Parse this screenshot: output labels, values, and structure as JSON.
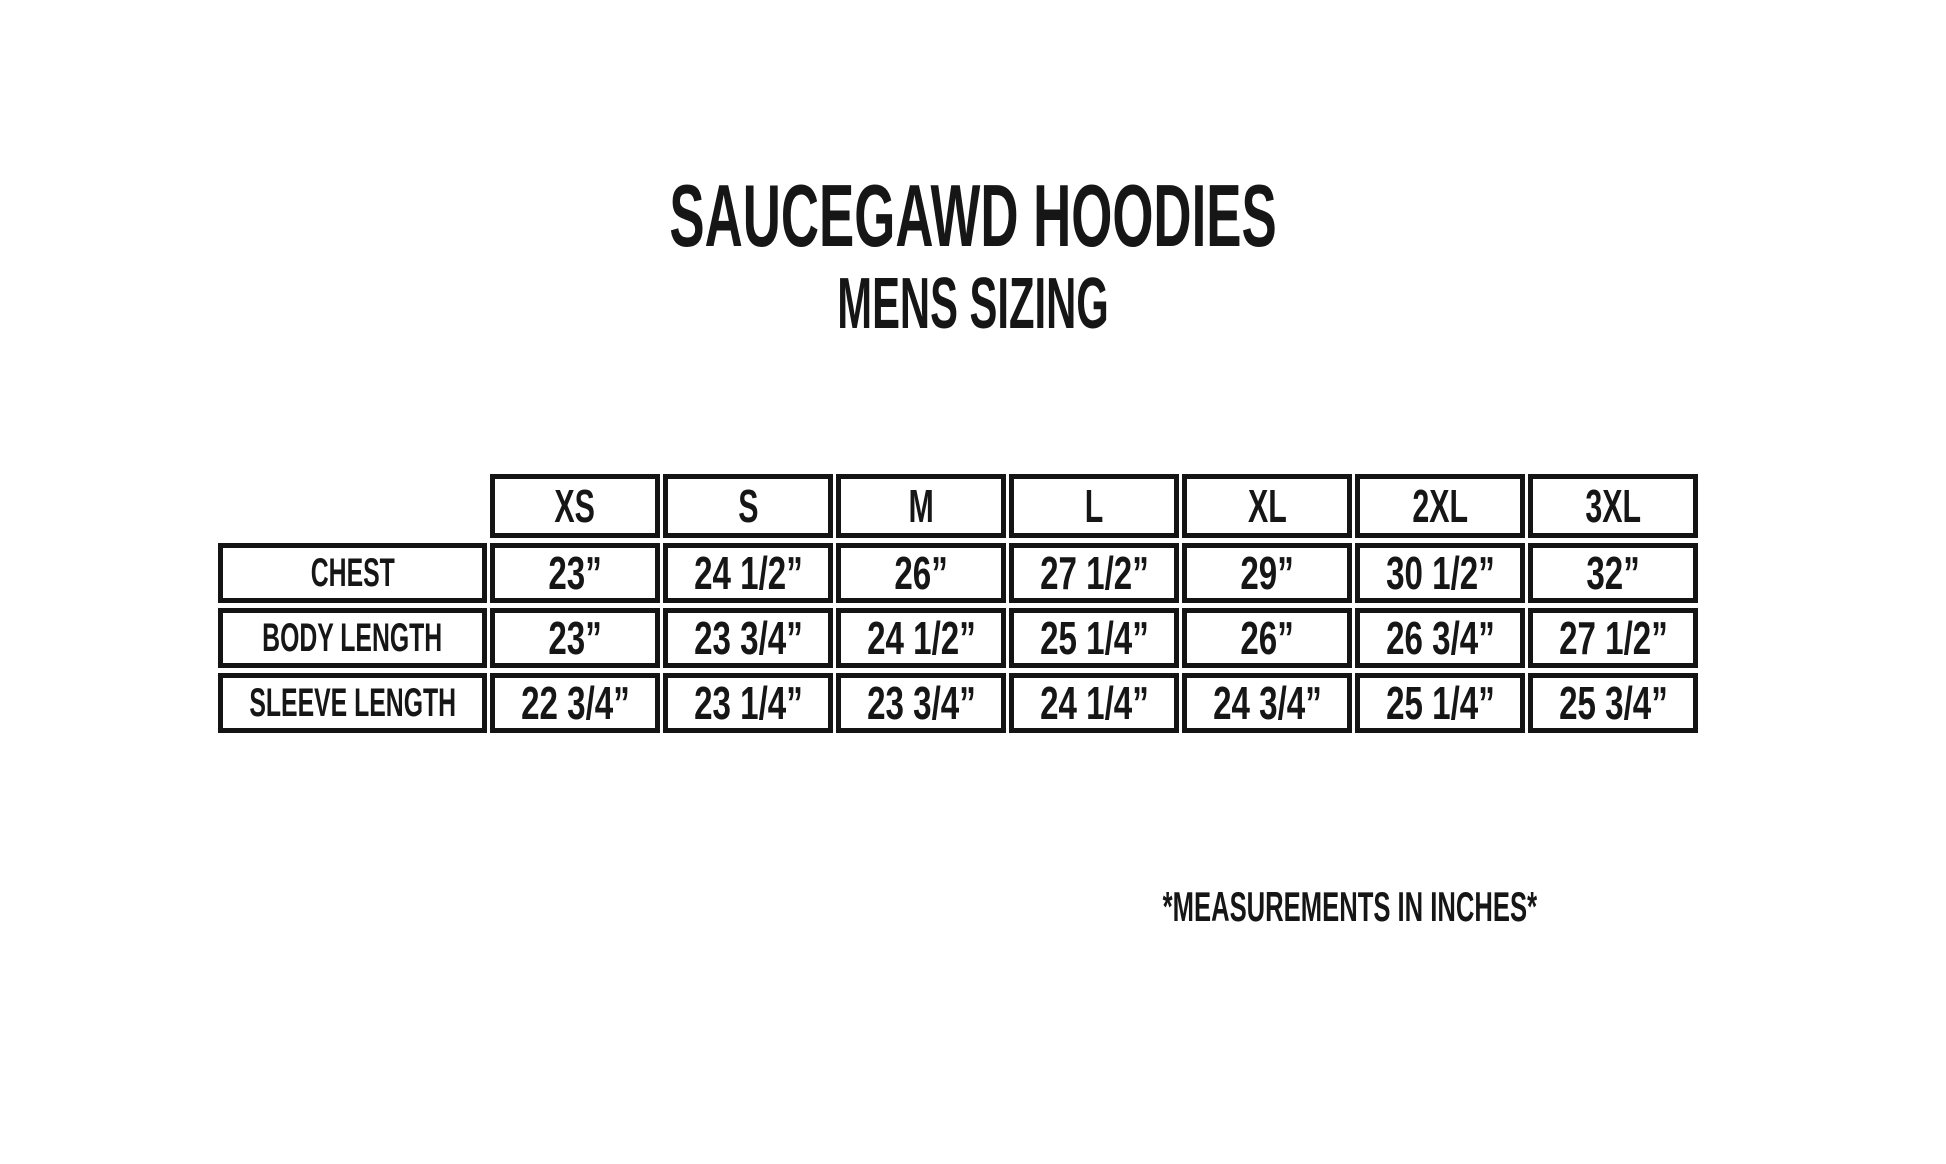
{
  "header": {
    "title": "SAUCEGAWD HOODIES",
    "subtitle": "MENS SIZING"
  },
  "chart_data": {
    "type": "table",
    "title": "SAUCEGAWD HOODIES",
    "subtitle": "MENS SIZING",
    "columns": [
      "XS",
      "S",
      "M",
      "L",
      "XL",
      "2XL",
      "3XL"
    ],
    "rows": [
      {
        "label": "CHEST",
        "values": [
          "23”",
          "24 1/2”",
          "26”",
          "27 1/2”",
          "29”",
          "30 1/2”",
          "32”"
        ]
      },
      {
        "label": "BODY LENGTH",
        "values": [
          "23”",
          "23 3/4”",
          "24 1/2”",
          "25 1/4”",
          "26”",
          "26 3/4”",
          "27 1/2”"
        ]
      },
      {
        "label": "SLEEVE LENGTH",
        "values": [
          "22 3/4”",
          "23 1/4”",
          "23 3/4”",
          "24 1/4”",
          "24 3/4”",
          "25 1/4”",
          "25 3/4”"
        ]
      }
    ],
    "units": "inches"
  },
  "footer": {
    "note": "*MEASUREMENTS IN INCHES*"
  },
  "colors": {
    "background": "#ffffff",
    "ink": "#161616"
  }
}
